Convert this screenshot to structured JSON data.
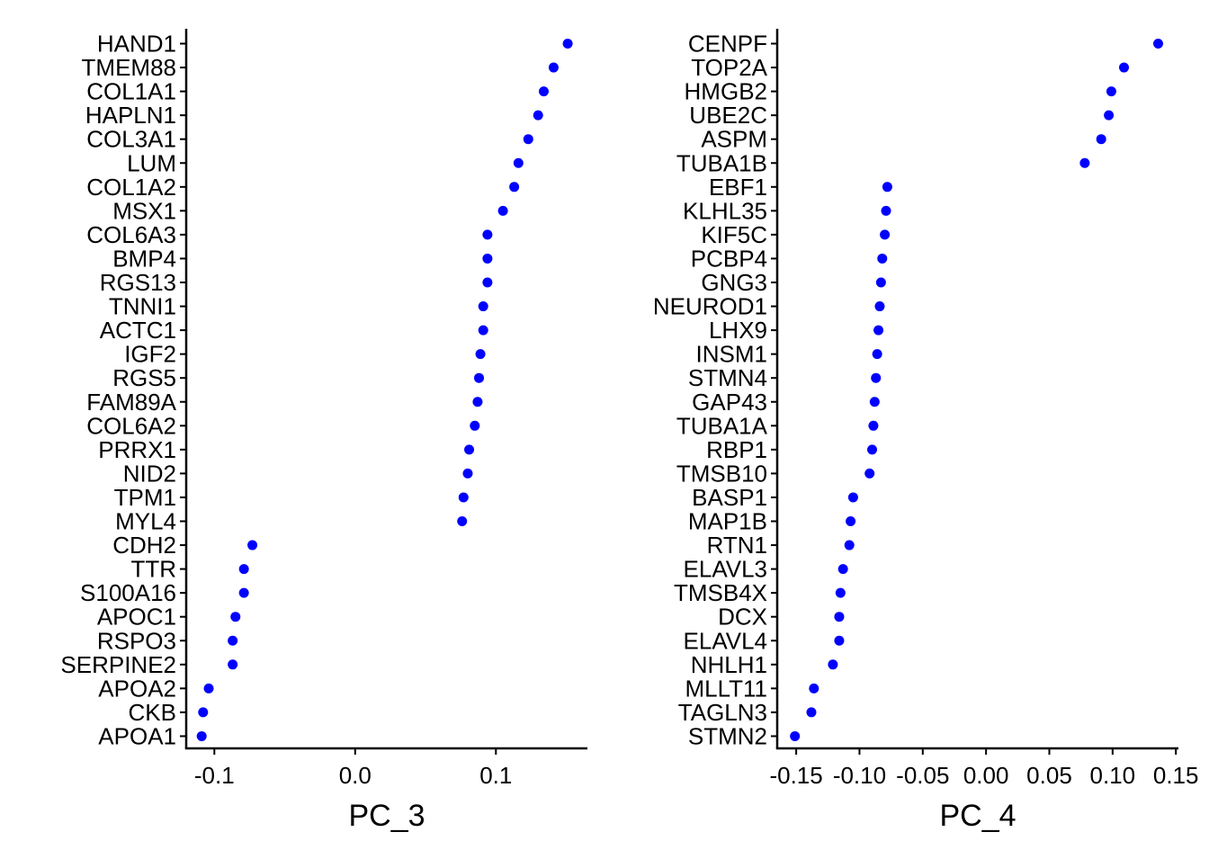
{
  "colors": {
    "point": "#0000ff",
    "axis": "#000000",
    "background": "#ffffff"
  },
  "chart_data": [
    {
      "type": "scatter",
      "xlabel": "PC_3",
      "ylabel": "",
      "xlim": [
        -0.12,
        0.165
      ],
      "xticks": [
        -0.1,
        0.0,
        0.1
      ],
      "xtick_labels": [
        "-0.1",
        "0.0",
        "0.1"
      ],
      "grid": false,
      "legend": "none",
      "point_color": "#0000ff",
      "genes": [
        "HAND1",
        "TMEM88",
        "COL1A1",
        "HAPLN1",
        "COL3A1",
        "LUM",
        "COL1A2",
        "MSX1",
        "COL6A3",
        "BMP4",
        "RGS13",
        "TNNI1",
        "ACTC1",
        "IGF2",
        "RGS5",
        "FAM89A",
        "COL6A2",
        "PRRX1",
        "NID2",
        "TPM1",
        "MYL4",
        "CDH2",
        "TTR",
        "S100A16",
        "APOC1",
        "RSPO3",
        "SERPINE2",
        "APOA2",
        "CKB",
        "APOA1"
      ],
      "values": [
        0.151,
        0.141,
        0.134,
        0.13,
        0.123,
        0.116,
        0.113,
        0.105,
        0.094,
        0.094,
        0.094,
        0.091,
        0.091,
        0.089,
        0.088,
        0.087,
        0.085,
        0.081,
        0.08,
        0.077,
        0.076,
        -0.073,
        -0.079,
        -0.079,
        -0.085,
        -0.087,
        -0.087,
        -0.104,
        -0.108,
        -0.109
      ]
    },
    {
      "type": "scatter",
      "xlabel": "PC_4",
      "ylabel": "",
      "xlim": [
        -0.165,
        0.152
      ],
      "xticks": [
        -0.15,
        -0.1,
        -0.05,
        0.0,
        0.05,
        0.1,
        0.15
      ],
      "xtick_labels": [
        "-0.15",
        "-0.10",
        "-0.05",
        "0.00",
        "0.05",
        "0.10",
        "0.15"
      ],
      "grid": false,
      "legend": "none",
      "point_color": "#0000ff",
      "genes": [
        "CENPF",
        "TOP2A",
        "HMGB2",
        "UBE2C",
        "ASPM",
        "TUBA1B",
        "EBF1",
        "KLHL35",
        "KIF5C",
        "PCBP4",
        "GNG3",
        "NEUROD1",
        "LHX9",
        "INSM1",
        "STMN4",
        "GAP43",
        "TUBA1A",
        "RBP1",
        "TMSB10",
        "BASP1",
        "MAP1B",
        "RTN1",
        "ELAVL3",
        "TMSB4X",
        "DCX",
        "ELAVL4",
        "NHLH1",
        "MLLT11",
        "TAGLN3",
        "STMN2"
      ],
      "values": [
        0.136,
        0.109,
        0.099,
        0.097,
        0.091,
        0.078,
        -0.078,
        -0.079,
        -0.08,
        -0.082,
        -0.083,
        -0.084,
        -0.085,
        -0.086,
        -0.087,
        -0.088,
        -0.089,
        -0.09,
        -0.092,
        -0.105,
        -0.107,
        -0.108,
        -0.113,
        -0.115,
        -0.116,
        -0.116,
        -0.121,
        -0.136,
        -0.138,
        -0.151
      ]
    }
  ]
}
